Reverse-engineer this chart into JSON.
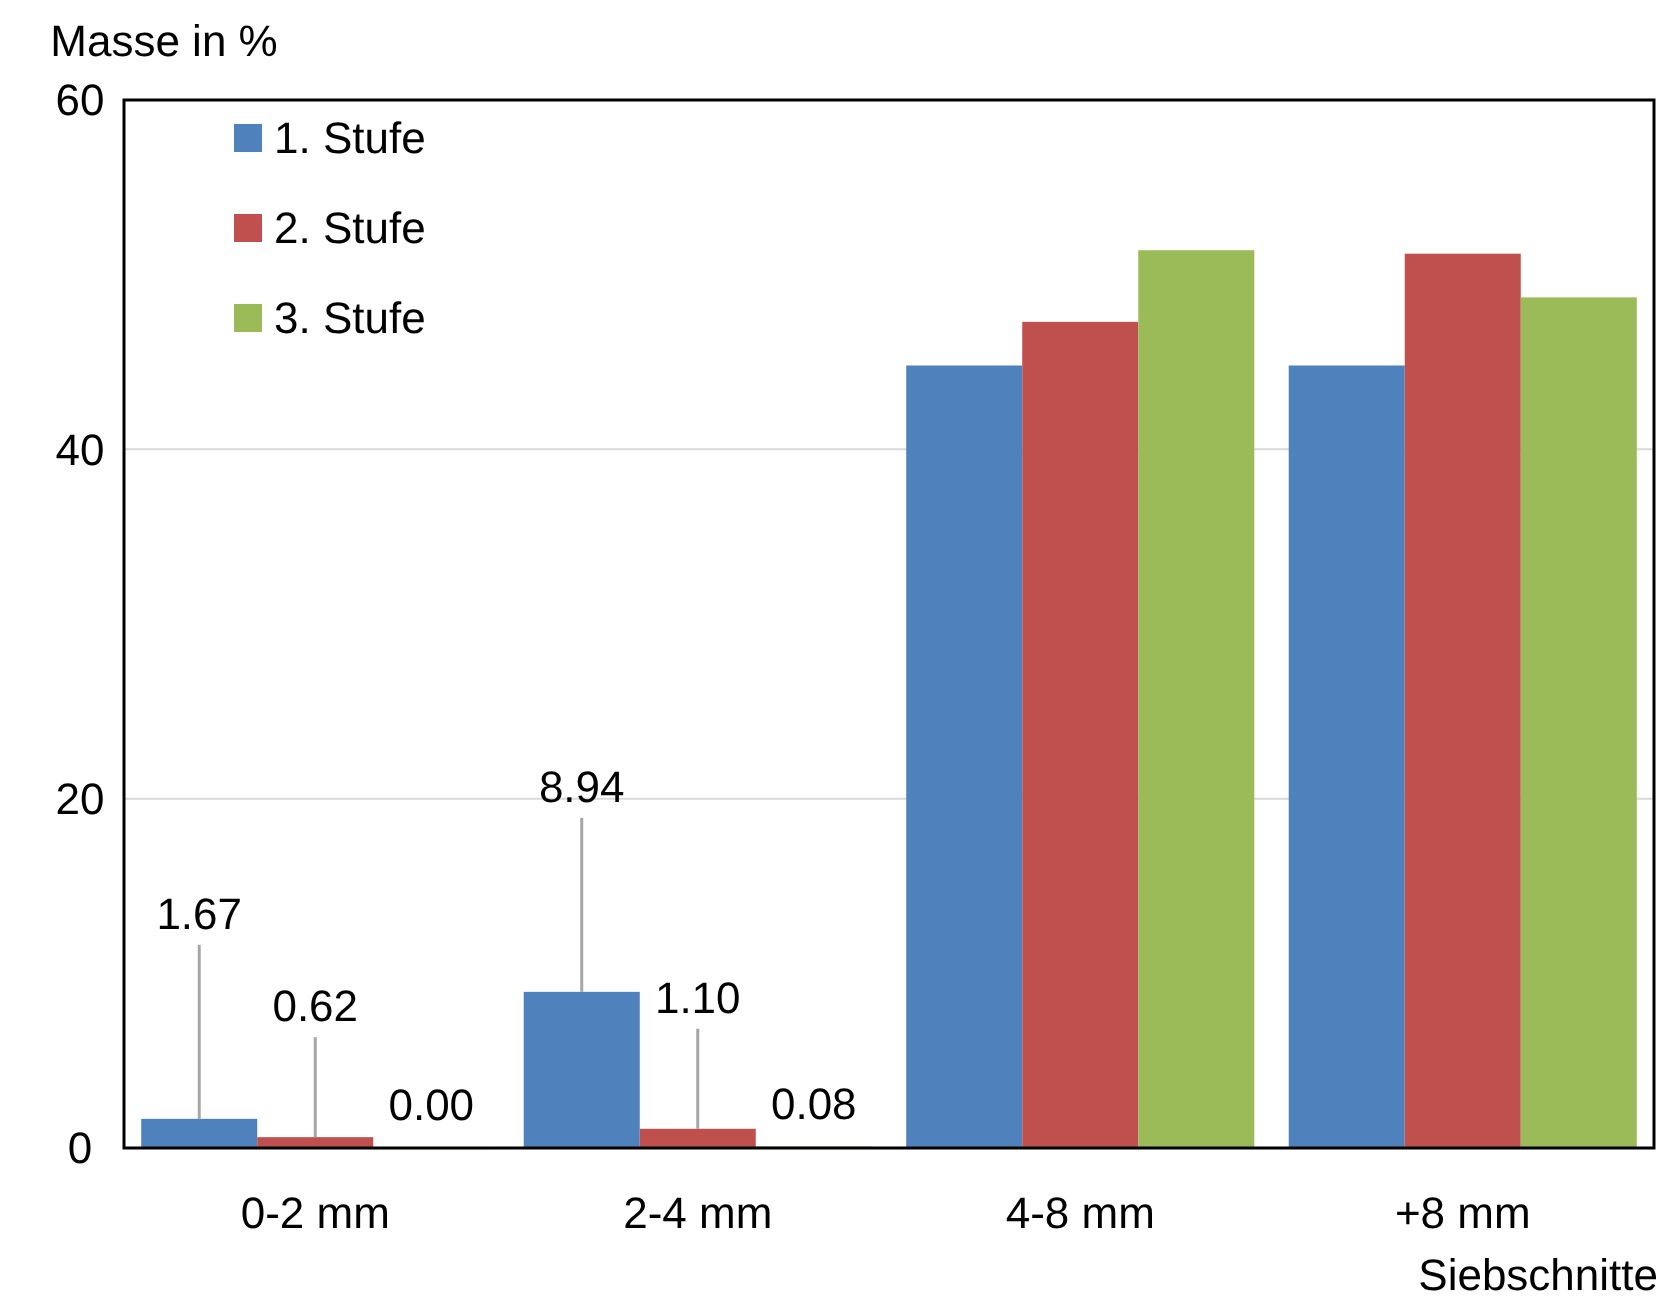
{
  "chart_data": {
    "type": "bar",
    "ylabel": "Masse in %",
    "xlabel": "Siebschnitte",
    "categories": [
      "0-2 mm",
      "2-4 mm",
      "4-8 mm",
      "+8 mm"
    ],
    "series": [
      {
        "name": "1. Stufe",
        "color": "#4f81bd",
        "values": [
          1.67,
          8.94,
          44.8,
          44.8
        ],
        "value_labels": [
          "1.67",
          "8.94",
          null,
          null
        ]
      },
      {
        "name": "2. Stufe",
        "color": "#c0504d",
        "values": [
          0.62,
          1.1,
          47.3,
          51.2
        ],
        "value_labels": [
          "0.62",
          "1.10",
          null,
          null
        ]
      },
      {
        "name": "3. Stufe",
        "color": "#9bbb59",
        "values": [
          0.0,
          0.08,
          51.4,
          48.7
        ],
        "value_labels": [
          "0.00",
          "0.08",
          null,
          null
        ]
      }
    ],
    "ylim": [
      0,
      60
    ],
    "yticks": [
      0,
      20,
      40,
      60
    ],
    "grid": "y",
    "legend": "top left"
  }
}
